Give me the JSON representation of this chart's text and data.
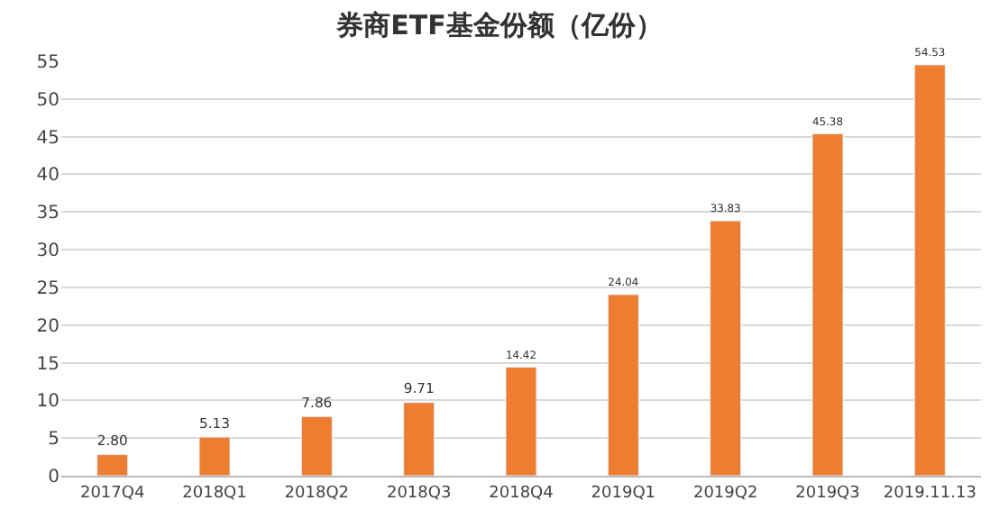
{
  "chart_data": {
    "type": "bar",
    "title": "券商ETF基金份额（亿份）",
    "categories": [
      "2017Q4",
      "2018Q1",
      "2018Q2",
      "2018Q3",
      "2018Q4",
      "2019Q1",
      "2019Q2",
      "2019Q3",
      "2019.11.13"
    ],
    "values": [
      2.8,
      5.13,
      7.86,
      9.71,
      14.42,
      24.04,
      33.83,
      45.38,
      54.53
    ],
    "value_labels": [
      "2.80",
      "5.13",
      "7.86",
      "9.71",
      "14.42",
      "24.04",
      "33.83",
      "45.38",
      "54.53"
    ],
    "color": "#ed7d31",
    "ylim": [
      0,
      55
    ],
    "yticks": [
      0,
      5,
      10,
      15,
      20,
      25,
      30,
      35,
      40,
      45,
      50,
      55
    ],
    "grid": "y",
    "legend": false
  }
}
